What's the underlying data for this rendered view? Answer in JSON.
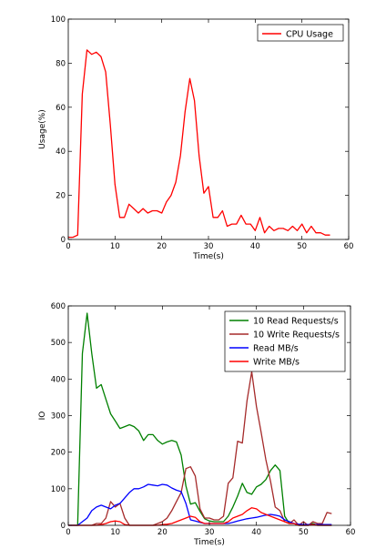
{
  "chart_data": [
    {
      "type": "line",
      "title": "",
      "xlabel": "Time(s)",
      "ylabel": "Usage(%)",
      "xlim": [
        0,
        60
      ],
      "ylim": [
        0,
        100
      ],
      "xticks": [
        0,
        10,
        20,
        30,
        40,
        50,
        60
      ],
      "yticks": [
        0,
        20,
        40,
        60,
        80,
        100
      ],
      "grid": false,
      "legend": "top-right",
      "series": [
        {
          "name": "CPU Usage",
          "color": "#ff0000",
          "x": [
            0,
            1,
            2,
            3,
            4,
            5,
            6,
            7,
            8,
            9,
            10,
            11,
            12,
            13,
            14,
            15,
            16,
            17,
            18,
            19,
            20,
            21,
            22,
            23,
            24,
            25,
            26,
            27,
            28,
            29,
            30,
            31,
            32,
            33,
            34,
            35,
            36,
            37,
            38,
            39,
            40,
            41,
            42,
            43,
            44,
            45,
            46,
            47,
            48,
            49,
            50,
            51,
            52,
            53,
            54,
            55,
            56
          ],
          "y": [
            1,
            1,
            2,
            66,
            86,
            84,
            85,
            83,
            76,
            52,
            25,
            10,
            10,
            16,
            14,
            12,
            14,
            12,
            13,
            13,
            12,
            17,
            20,
            26,
            38,
            58,
            73,
            63,
            38,
            21,
            24,
            10,
            10,
            13,
            6,
            7,
            7,
            11,
            7,
            7,
            4,
            10,
            3,
            6,
            4,
            5,
            5,
            4,
            6,
            4,
            7,
            3,
            6,
            3,
            3,
            2,
            2
          ]
        }
      ]
    },
    {
      "type": "line",
      "title": "",
      "xlabel": "Time(s)",
      "ylabel": "IO",
      "xlim": [
        0,
        60
      ],
      "ylim": [
        0,
        600
      ],
      "xticks": [
        0,
        10,
        20,
        30,
        40,
        50,
        60
      ],
      "yticks": [
        0,
        100,
        200,
        300,
        400,
        500,
        600
      ],
      "grid": false,
      "legend": "top-right",
      "series": [
        {
          "name": "10 Read Requests/s",
          "color": "#008000",
          "x": [
            0,
            1,
            2,
            3,
            4,
            5,
            6,
            7,
            8,
            9,
            10,
            11,
            12,
            13,
            14,
            15,
            16,
            17,
            18,
            19,
            20,
            21,
            22,
            23,
            24,
            25,
            26,
            27,
            28,
            29,
            30,
            31,
            32,
            33,
            34,
            35,
            36,
            37,
            38,
            39,
            40,
            41,
            42,
            43,
            44,
            45,
            46,
            47,
            48,
            49,
            50,
            51,
            52,
            53,
            54,
            55,
            56
          ],
          "y": [
            0,
            0,
            0,
            470,
            580,
            470,
            375,
            385,
            345,
            305,
            285,
            265,
            270,
            275,
            270,
            258,
            232,
            248,
            248,
            232,
            222,
            228,
            232,
            228,
            192,
            108,
            58,
            62,
            38,
            18,
            12,
            10,
            10,
            10,
            25,
            50,
            80,
            115,
            90,
            85,
            105,
            112,
            125,
            150,
            165,
            150,
            25,
            5,
            5,
            0,
            0,
            0,
            5,
            0,
            0,
            0,
            0
          ]
        },
        {
          "name": "10 Write Requests/s",
          "color": "#a52a2a",
          "x": [
            0,
            1,
            2,
            3,
            4,
            5,
            6,
            7,
            8,
            9,
            10,
            11,
            12,
            13,
            14,
            15,
            16,
            17,
            18,
            19,
            20,
            21,
            22,
            23,
            24,
            25,
            26,
            27,
            28,
            29,
            30,
            31,
            32,
            33,
            34,
            35,
            36,
            37,
            38,
            39,
            40,
            41,
            42,
            43,
            44,
            45,
            46,
            47,
            48,
            49,
            50,
            51,
            52,
            53,
            54,
            55,
            56
          ],
          "y": [
            0,
            0,
            0,
            0,
            0,
            0,
            5,
            5,
            20,
            65,
            50,
            60,
            20,
            0,
            0,
            0,
            0,
            0,
            0,
            5,
            10,
            20,
            40,
            65,
            90,
            155,
            160,
            135,
            45,
            20,
            20,
            15,
            15,
            25,
            115,
            130,
            230,
            225,
            340,
            420,
            325,
            255,
            180,
            120,
            50,
            40,
            10,
            5,
            15,
            0,
            10,
            0,
            10,
            5,
            5,
            35,
            32
          ]
        },
        {
          "name": "Read MB/s",
          "color": "#0000ff",
          "x": [
            0,
            1,
            2,
            3,
            4,
            5,
            6,
            7,
            8,
            9,
            10,
            11,
            12,
            13,
            14,
            15,
            16,
            17,
            18,
            19,
            20,
            21,
            22,
            23,
            24,
            25,
            26,
            27,
            28,
            29,
            30,
            31,
            32,
            33,
            34,
            35,
            36,
            37,
            38,
            39,
            40,
            41,
            42,
            43,
            44,
            45,
            46,
            47,
            48,
            49,
            50,
            51,
            52,
            53,
            54,
            55,
            56
          ],
          "y": [
            0,
            0,
            0,
            10,
            20,
            40,
            50,
            55,
            50,
            45,
            55,
            60,
            75,
            90,
            100,
            100,
            105,
            112,
            110,
            108,
            112,
            110,
            102,
            96,
            92,
            60,
            15,
            12,
            8,
            5,
            5,
            5,
            5,
            5,
            5,
            8,
            12,
            15,
            18,
            20,
            22,
            25,
            28,
            30,
            28,
            25,
            15,
            10,
            5,
            3,
            2,
            2,
            2,
            2,
            2,
            2,
            2
          ]
        },
        {
          "name": "Write MB/s",
          "color": "#ff0000",
          "x": [
            0,
            1,
            2,
            3,
            4,
            5,
            6,
            7,
            8,
            9,
            10,
            11,
            12,
            13,
            14,
            15,
            16,
            17,
            18,
            19,
            20,
            21,
            22,
            23,
            24,
            25,
            26,
            27,
            28,
            29,
            30,
            31,
            32,
            33,
            34,
            35,
            36,
            37,
            38,
            39,
            40,
            41,
            42,
            43,
            44,
            45,
            46,
            47,
            48,
            49,
            50,
            51,
            52,
            53,
            54,
            55,
            56
          ],
          "y": [
            0,
            0,
            0,
            0,
            0,
            0,
            0,
            2,
            5,
            10,
            12,
            10,
            2,
            0,
            0,
            0,
            0,
            0,
            0,
            0,
            2,
            3,
            5,
            10,
            15,
            20,
            25,
            22,
            10,
            5,
            5,
            5,
            5,
            5,
            10,
            20,
            25,
            30,
            40,
            48,
            45,
            35,
            30,
            25,
            20,
            15,
            10,
            5,
            5,
            0,
            0,
            0,
            2,
            0,
            0,
            0,
            0
          ]
        }
      ]
    }
  ]
}
